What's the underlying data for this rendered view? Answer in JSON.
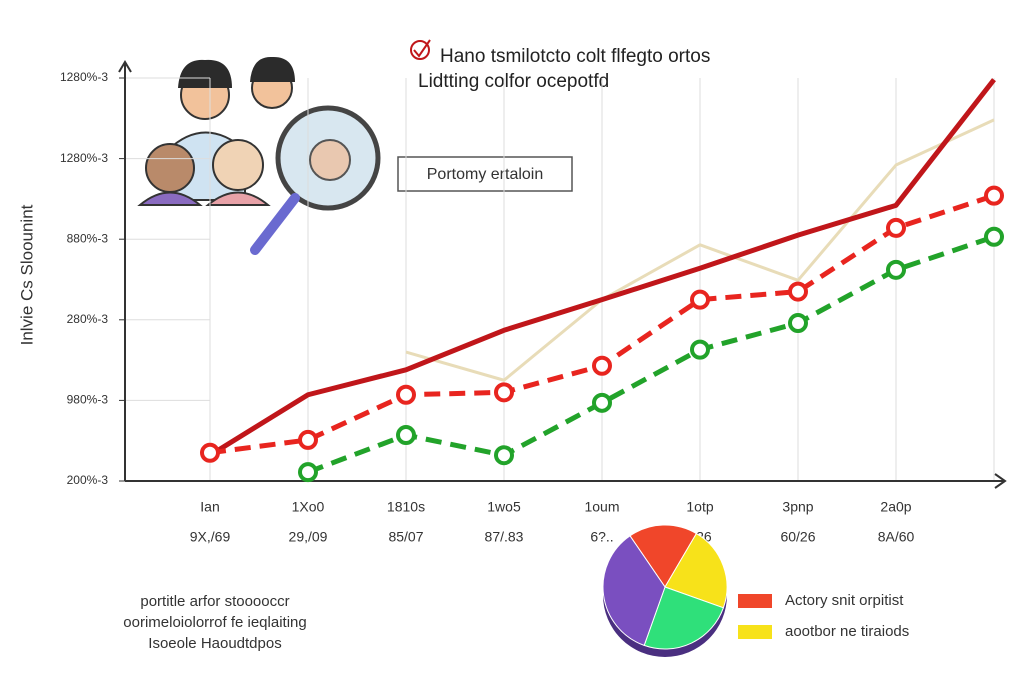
{
  "chart_data": [
    {
      "type": "line",
      "title": "Hano tsmilotcto colt flfegto ortos",
      "subtitle": "Lidtting colfor ocepotfd",
      "annotation": "Portomy ertaloin",
      "y_label": "Inlvie Cs Sloounint",
      "footnote": [
        "portitle arfor stooooccr",
        "oorimeloiolorrof fe ieqlaiting",
        "Isoeole Haoudtdpos"
      ],
      "categories": [
        "Ian",
        "1Xo0",
        "1810s",
        "1wo5",
        "1oum",
        "1otp",
        "3pnp",
        "2a0p",
        null
      ],
      "sublabels": [
        "9X,/69",
        "29,/09",
        "85/07",
        "87/.83",
        "6?..",
        "..26",
        "60/26",
        "8A/60",
        null
      ],
      "ylim": [
        0,
        5
      ],
      "yticks": [
        {
          "value": 0,
          "label": "200%-3"
        },
        {
          "value": 1,
          "label": "980%-3"
        },
        {
          "value": 2,
          "label": "280%-3"
        },
        {
          "value": 3,
          "label": "880%-3"
        },
        {
          "value": 4,
          "label": "1280%-3"
        },
        {
          "value": 5,
          "label": "1280%-3"
        }
      ],
      "grid": true,
      "series": [
        {
          "color": "#e8dcb8",
          "dashed": false,
          "markers": false,
          "values": [
            null,
            null,
            1.6,
            1.25,
            2.25,
            2.93,
            2.49,
            3.92,
            4.48
          ]
        },
        {
          "color": "#c0161a",
          "dashed": false,
          "markers": false,
          "values": [
            0.32,
            1.07,
            1.38,
            1.87,
            2.25,
            2.64,
            3.05,
            3.42,
            4.98
          ]
        },
        {
          "color": "#e8251f",
          "dashed": true,
          "markers": true,
          "values": [
            0.35,
            0.51,
            1.07,
            1.1,
            1.43,
            2.25,
            2.35,
            3.14,
            3.54
          ]
        },
        {
          "color": "#22a32a",
          "dashed": true,
          "markers": true,
          "values": [
            null,
            0.11,
            0.57,
            0.32,
            0.97,
            1.63,
            1.96,
            2.62,
            3.03
          ]
        }
      ]
    },
    {
      "type": "pie",
      "values": [
        18,
        22,
        25,
        35
      ],
      "colors": [
        "#f0462a",
        "#f7e21a",
        "#2fe07a",
        "#7a4fc0"
      ],
      "labels": [
        "Actory snit orpitist",
        "aootbor ne tiraiods",
        null,
        null
      ]
    }
  ]
}
